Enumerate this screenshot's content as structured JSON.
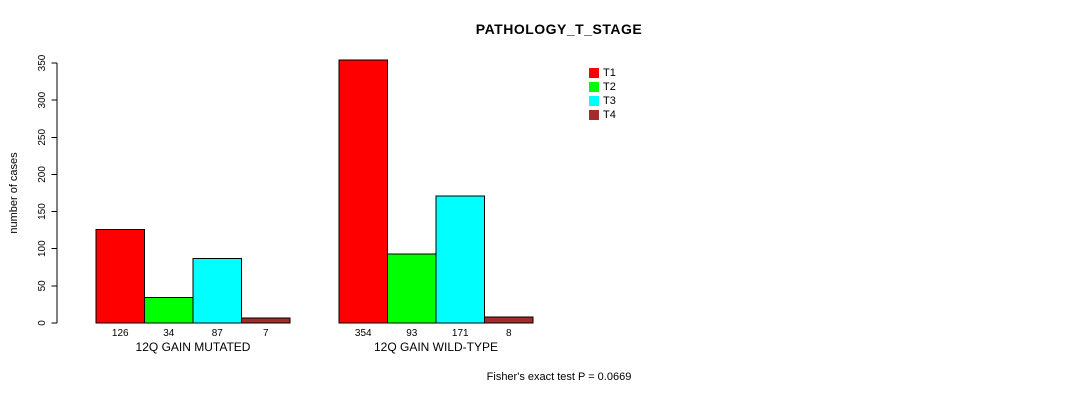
{
  "chart_data": {
    "type": "bar",
    "title": "PATHOLOGY_T_STAGE",
    "ylabel": "number of cases",
    "xlabel": "",
    "ylim": [
      0,
      350
    ],
    "yticks": [
      0,
      50,
      100,
      150,
      200,
      250,
      300,
      350
    ],
    "grid": false,
    "legend_position": "top-right",
    "categories": [
      "12Q GAIN MUTATED",
      "12Q GAIN WILD-TYPE"
    ],
    "series": [
      {
        "name": "T1",
        "color": "#FF0000",
        "values": [
          126,
          354
        ]
      },
      {
        "name": "T2",
        "color": "#00FF00",
        "values": [
          34,
          93
        ]
      },
      {
        "name": "T3",
        "color": "#00FFFF",
        "values": [
          87,
          171
        ]
      },
      {
        "name": "T4",
        "color": "#A52A2A",
        "values": [
          7,
          8
        ]
      }
    ],
    "bar_value_labels": [
      [
        126,
        34,
        87,
        7
      ],
      [
        354,
        93,
        171,
        8
      ]
    ],
    "annotation": "Fisher's exact test P = 0.0669",
    "axis_color": "#000000",
    "bar_border_color": "#000000"
  }
}
